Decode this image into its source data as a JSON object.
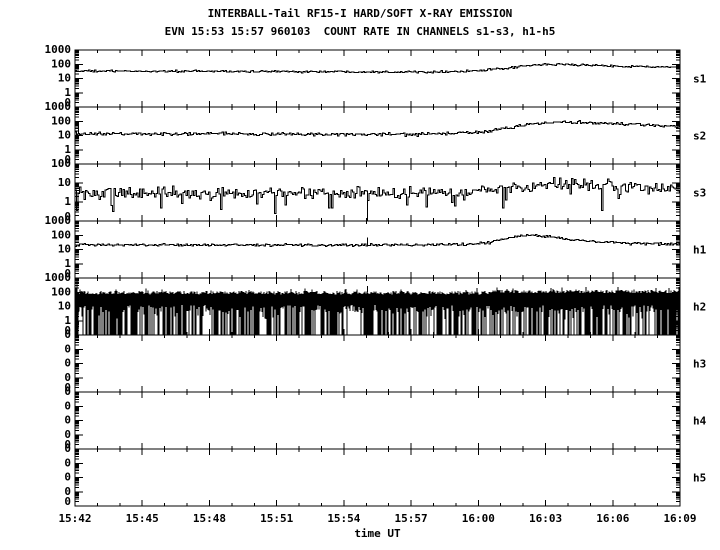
{
  "header": {
    "title_line1": "INTERBALL-Tail RF15-I HARD/SOFT X-RAY EMISSION",
    "title_line2": "EVN 15:53 15:57 960103  COUNT RATE IN CHANNELS s1-s3, h1-h5"
  },
  "colors": {
    "foreground": "#000000",
    "background": "#ffffff"
  },
  "chart_data": {
    "type": "line",
    "title": "INTERBALL-Tail RF15-I HARD/SOFT X-RAY EMISSION",
    "subtitle": "EVN 15:53 15:57 960103  COUNT RATE IN CHANNELS s1-s3, h1-h5",
    "xlabel": "time UT",
    "x_tick_labels": [
      "15:42",
      "15:45",
      "15:48",
      "15:51",
      "15:54",
      "15:57",
      "16:00",
      "16:03",
      "16:06",
      "16:09"
    ],
    "x_range_minutes": [
      0,
      27
    ],
    "x_major_step_min": 3,
    "x_minor_step_min": 1,
    "y_scale": "log",
    "grid": false,
    "panels": [
      {
        "label": "s1",
        "style": "line",
        "top_value": 1000,
        "y_tick_labels": [
          "1000",
          "100",
          "10",
          "1",
          "0"
        ],
        "noise_dex": 0.045,
        "profile": {
          "t_min": [
            0,
            6,
            12,
            15,
            17,
            18,
            19,
            20,
            20.7,
            21.5,
            22.5,
            24,
            25.5,
            27
          ],
          "counts": [
            33,
            32,
            30,
            29,
            31,
            35,
            47,
            72,
            93,
            99,
            89,
            76,
            67,
            60
          ]
        },
        "spikes": []
      },
      {
        "label": "s2",
        "style": "line",
        "top_value": 1000,
        "y_tick_labels": [
          "1000",
          "100",
          "10",
          "1",
          "0"
        ],
        "noise_dex": 0.07,
        "profile": {
          "t_min": [
            0,
            6,
            12,
            15,
            16.5,
            17.5,
            18.5,
            19.5,
            20.5,
            21.3,
            22.2,
            23.2,
            24.5,
            26,
            27
          ],
          "counts": [
            13,
            13,
            12,
            12,
            13,
            15,
            21,
            38,
            66,
            84,
            86,
            78,
            64,
            52,
            46
          ]
        },
        "spikes": [
          {
            "t_min": 0.15,
            "counts": 45
          }
        ]
      },
      {
        "label": "s3",
        "style": "line",
        "top_value": 100,
        "y_tick_labels": [
          "100",
          "10",
          "1",
          "0"
        ],
        "noise_dex": 0.2,
        "dips": {
          "prob": 0.08,
          "min_dex": 0.25,
          "max_dex": 1.0
        },
        "profile": {
          "t_min": [
            0,
            6,
            12,
            15,
            17,
            18,
            19,
            20,
            21,
            22,
            23,
            24,
            25.5,
            27
          ],
          "counts": [
            3,
            3,
            3,
            3,
            3.3,
            3.8,
            4.8,
            6.5,
            10,
            9,
            7.5,
            6.3,
            5.5,
            5
          ]
        },
        "spikes": [
          {
            "t_min": 13.05,
            "counts": 0
          }
        ]
      },
      {
        "label": "h1",
        "style": "line",
        "top_value": 1000,
        "y_tick_labels": [
          "1000",
          "100",
          "10",
          "1",
          "0"
        ],
        "noise_dex": 0.055,
        "profile": {
          "t_min": [
            0,
            6,
            12,
            14,
            16,
            17.5,
            18.5,
            19.2,
            19.8,
            20.5,
            21.3,
            22.2,
            23.2,
            24.5,
            26,
            27
          ],
          "counts": [
            21,
            21,
            20,
            21,
            21,
            23,
            32,
            60,
            93,
            96,
            72,
            48,
            36,
            28,
            24,
            23
          ]
        },
        "spikes": [
          {
            "t_min": 13.05,
            "counts": 70
          }
        ]
      },
      {
        "label": "h2",
        "style": "band",
        "top_value": 1000,
        "y_tick_labels": [
          "1000",
          "100",
          "10",
          "1",
          "0"
        ],
        "band": {
          "top_dex": 1.97,
          "top_jitter_dex": 0.12,
          "boost_after_min": 18.5,
          "boost_dex": 0.08,
          "bottom_dex": 0.85,
          "bottom_jitter_dex": 0.25,
          "dropout_prob": 0.55,
          "band_range_counts": [
            10,
            100
          ]
        },
        "spikes": [
          {
            "t_min": 0.08,
            "counts": 800
          },
          {
            "t_min": 13.05,
            "counts": 280
          }
        ]
      },
      {
        "label": "h3",
        "style": "empty",
        "top_value": 1000,
        "y_tick_labels": [
          "0",
          "0",
          "0",
          "0",
          "0"
        ],
        "counts_constant": 0
      },
      {
        "label": "h4",
        "style": "empty",
        "top_value": 1000,
        "y_tick_labels": [
          "0",
          "0",
          "0",
          "0",
          "0"
        ],
        "counts_constant": 0
      },
      {
        "label": "h5",
        "style": "empty",
        "top_value": 1000,
        "y_tick_labels": [
          "0",
          "0",
          "0",
          "0",
          "0"
        ],
        "counts_constant": 0
      }
    ]
  }
}
